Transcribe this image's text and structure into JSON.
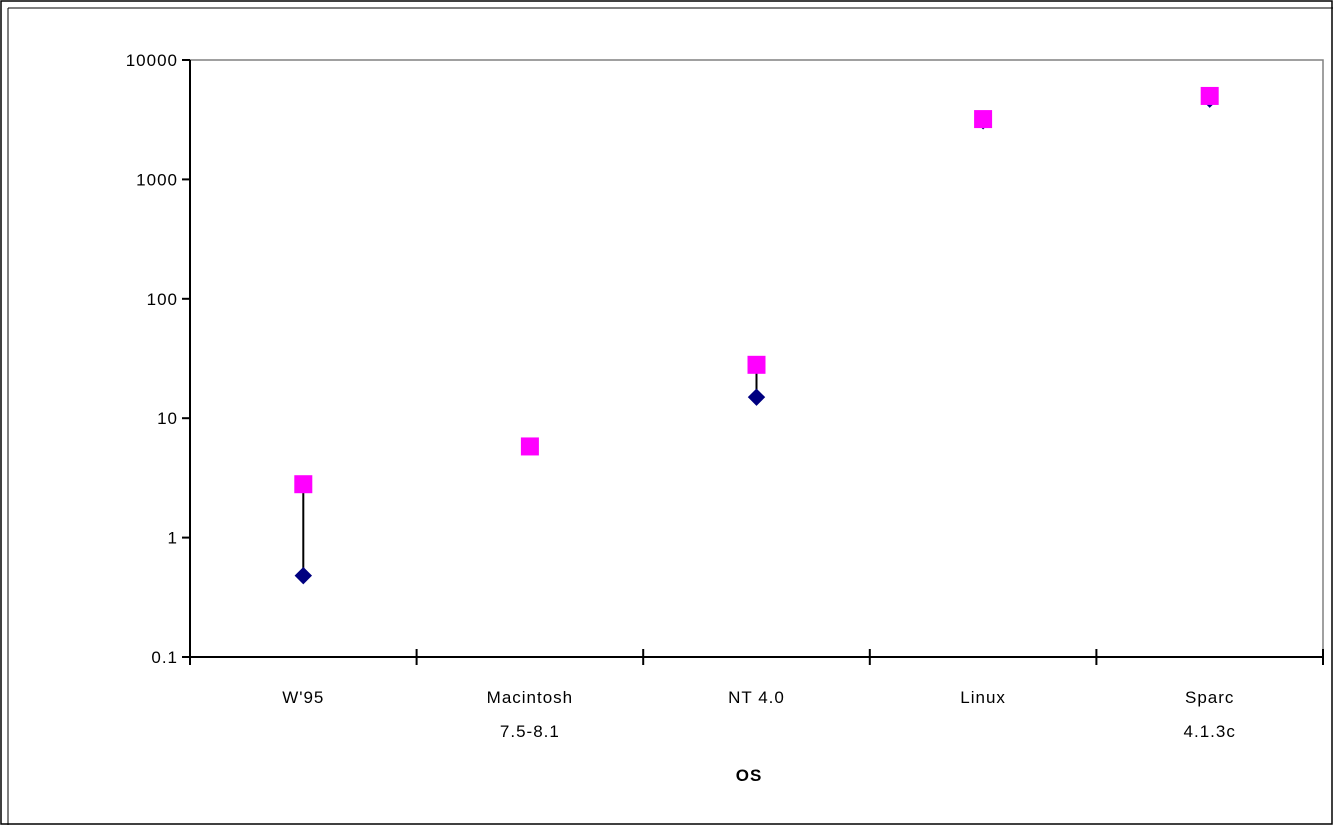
{
  "chart_data": {
    "type": "scatter",
    "title": "",
    "xlabel": "OS",
    "ylabel": "",
    "y_scale": "log",
    "ylim": [
      0.1,
      10000
    ],
    "y_ticks": [
      "0.1",
      "1",
      "10",
      "100",
      "1000",
      "10000"
    ],
    "y_tick_values": [
      0.1,
      1,
      10,
      100,
      1000,
      10000
    ],
    "categories": [
      [
        "W'95"
      ],
      [
        "Macintosh",
        "7.5-8.1"
      ],
      [
        "NT 4.0"
      ],
      [
        "Linux"
      ],
      [
        "Sparc",
        "4.1.3c"
      ]
    ],
    "series": [
      {
        "color": "#000080",
        "marker": "diamond",
        "values": [
          0.48,
          5.8,
          15,
          3100,
          4700
        ]
      },
      {
        "color": "#ff00ff",
        "marker": "square",
        "values": [
          2.8,
          5.8,
          28,
          3200,
          5000
        ]
      }
    ],
    "range_lines": true,
    "grid": false,
    "legend": "none"
  }
}
